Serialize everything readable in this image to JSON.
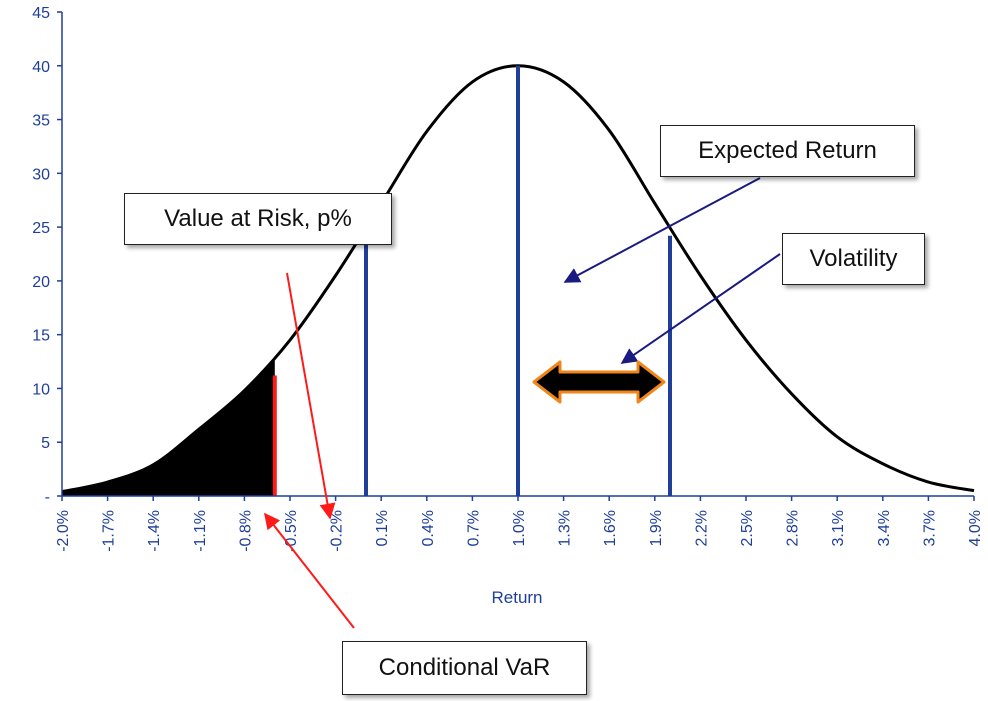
{
  "chart_data": {
    "type": "area",
    "xlabel": "Return",
    "ylabel": "",
    "title": "",
    "x_ticks": [
      "-2.0%",
      "-1.7%",
      "-1.4%",
      "-1.1%",
      "-0.8%",
      "-0.5%",
      "-0.2%",
      "0.1%",
      "0.4%",
      "0.7%",
      "1.0%",
      "1.3%",
      "1.6%",
      "1.9%",
      "2.2%",
      "2.5%",
      "2.8%",
      "3.1%",
      "3.4%",
      "3.7%",
      "4.0%"
    ],
    "y_ticks": [
      "-",
      "5",
      "10",
      "15",
      "20",
      "25",
      "30",
      "35",
      "40",
      "45"
    ],
    "xlim": [
      -2.0,
      4.0
    ],
    "ylim": [
      0,
      45
    ],
    "series": [
      {
        "x": [
          -2.0,
          -1.7,
          -1.4,
          -1.1,
          -0.8,
          -0.5,
          -0.2,
          0.1,
          0.4,
          0.7,
          1.0,
          1.3,
          1.6,
          1.9,
          2.2,
          2.5,
          2.8,
          3.1,
          3.4,
          3.7,
          4.0
        ],
        "y": [
          0.4,
          1.3,
          2.9,
          6.2,
          9.8,
          14.5,
          20.5,
          27.2,
          33.9,
          38.5,
          40.0,
          38.5,
          34.0,
          27.2,
          20.5,
          14.5,
          9.5,
          5.5,
          3.0,
          1.3,
          0.5
        ]
      }
    ],
    "shaded_tail_to": -0.6,
    "lines": [
      {
        "x": -0.6,
        "y": 11.2,
        "color": "#ff1a1a"
      },
      {
        "x": 0.0,
        "y": 24.2,
        "color": "#1f3f99"
      },
      {
        "x": 1.0,
        "y": 40.0,
        "color": "#1f3f99"
      },
      {
        "x": 2.0,
        "y": 24.2,
        "color": "#1f3f99"
      }
    ],
    "annotations": {
      "expected_return": "Expected Return",
      "value_at_risk": "Value at Risk, p%",
      "volatility": "Volatility",
      "conditional_var": "Conditional VaR"
    },
    "grid": false,
    "colors": {
      "curve": "#000000",
      "axis": "#1f3f99",
      "mean_lines": "#1f3f99",
      "var_line": "#ff1a1a",
      "arrow_fill": "#000000",
      "arrow_outline": "#f0861a"
    }
  }
}
